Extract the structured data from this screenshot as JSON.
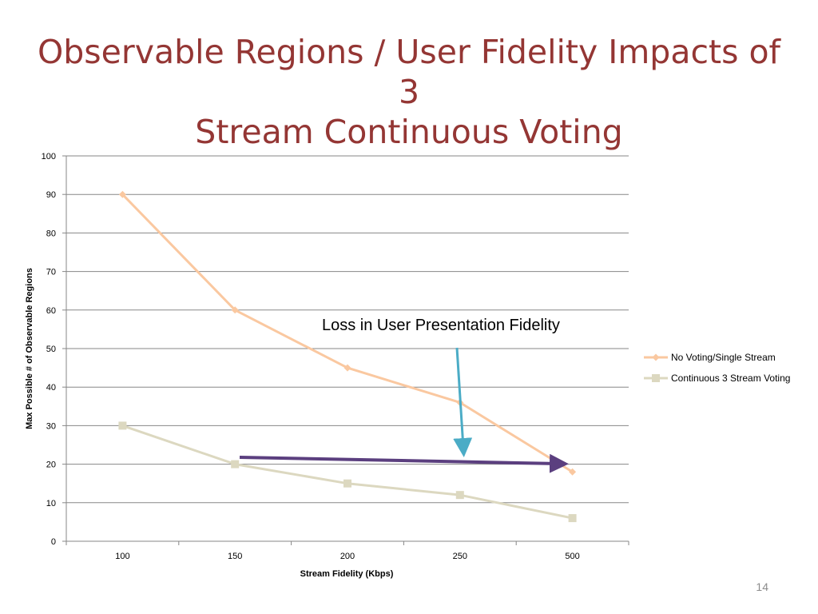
{
  "slide": {
    "title_line1": "Observable Regions / User Fidelity Impacts of 3",
    "title_line2": "Stream Continuous Voting",
    "page_number": "14"
  },
  "colors": {
    "title": "#943634",
    "series_no_voting": "#fac8a0",
    "series_voting": "#dcd8c0",
    "annotation_arrow_vertical": "#4bacc6",
    "annotation_arrow_horizontal": "#5b3f7f",
    "gridline": "#878787"
  },
  "chart_data": {
    "type": "line",
    "categories": [
      "100",
      "150",
      "200",
      "250",
      "500"
    ],
    "xlabel": "Stream Fidelity (Kbps)",
    "ylabel": "Max Possible # of Observable Regions",
    "ylim": [
      0,
      100
    ],
    "yticks": [
      0,
      10,
      20,
      30,
      40,
      50,
      60,
      70,
      80,
      90,
      100
    ],
    "grid": true,
    "legend_position": "right",
    "series": [
      {
        "name": "No Voting/Single Stream",
        "marker": "diamond",
        "values": [
          90,
          60,
          45,
          36,
          18
        ]
      },
      {
        "name": "Continuous 3 Stream Voting",
        "marker": "square",
        "values": [
          30,
          20,
          15,
          12,
          6
        ]
      }
    ],
    "annotations": [
      {
        "text": "Loss in User Presentation Fidelity"
      }
    ]
  }
}
